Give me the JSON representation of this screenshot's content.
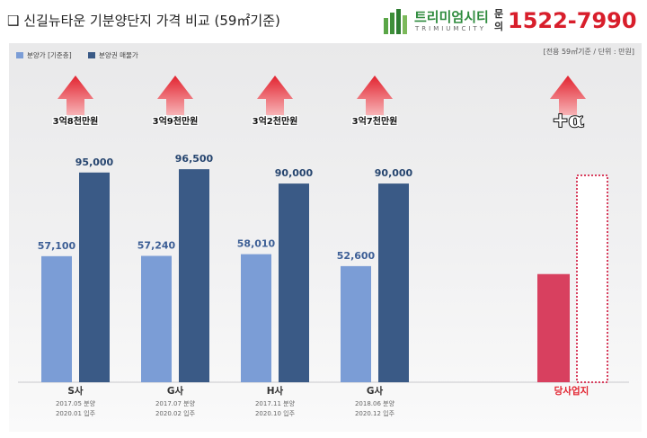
{
  "header": {
    "title": "❑ 신길뉴타운 기분양단지 가격 비교 (59㎡기준)",
    "logo_badge": "",
    "brand_name": "트리미엄시티",
    "brand_sub": "TRIMIUMCITY",
    "inquiry_label": "문의",
    "phone": "1522-7990"
  },
  "note": "[전용 59㎡기준 / 단위 : 만원]",
  "colors": {
    "sale_price": "#7b9dd6",
    "resale_price": "#3a5a86",
    "arrow": "#e2232f",
    "our_site": "#d8405f",
    "our_site_label": "#e2232f"
  },
  "chart_data": {
    "type": "bar",
    "ylim": [
      0,
      110000
    ],
    "grid": false,
    "legend_position": "top-left",
    "categories": [
      "S사",
      "G사",
      "H사",
      "G사"
    ],
    "category_details": [
      [
        "2017.05 분양",
        "2020.01 입주"
      ],
      [
        "2017.07 분양",
        "2020.02 입주"
      ],
      [
        "2017.11 분양",
        "2020.10 입주"
      ],
      [
        "2018.06 분양",
        "2020.12 입주"
      ]
    ],
    "series": [
      {
        "name": "분양가 [기준층]",
        "values": [
          57100,
          57240,
          58010,
          52600
        ],
        "labels": [
          "57,100",
          "57,240",
          "58,010",
          "52,600"
        ]
      },
      {
        "name": "분양권 매물가",
        "values": [
          95000,
          96500,
          90000,
          90000
        ],
        "labels": [
          "95,000",
          "96,500",
          "90,000",
          "90,000"
        ]
      }
    ],
    "premiums": [
      "3억8천만원",
      "3억9천만원",
      "3억2천만원",
      "3억7천만원"
    ],
    "our_site": {
      "label": "당사업지",
      "sale_value": 49000,
      "plus_label": "+α"
    }
  }
}
